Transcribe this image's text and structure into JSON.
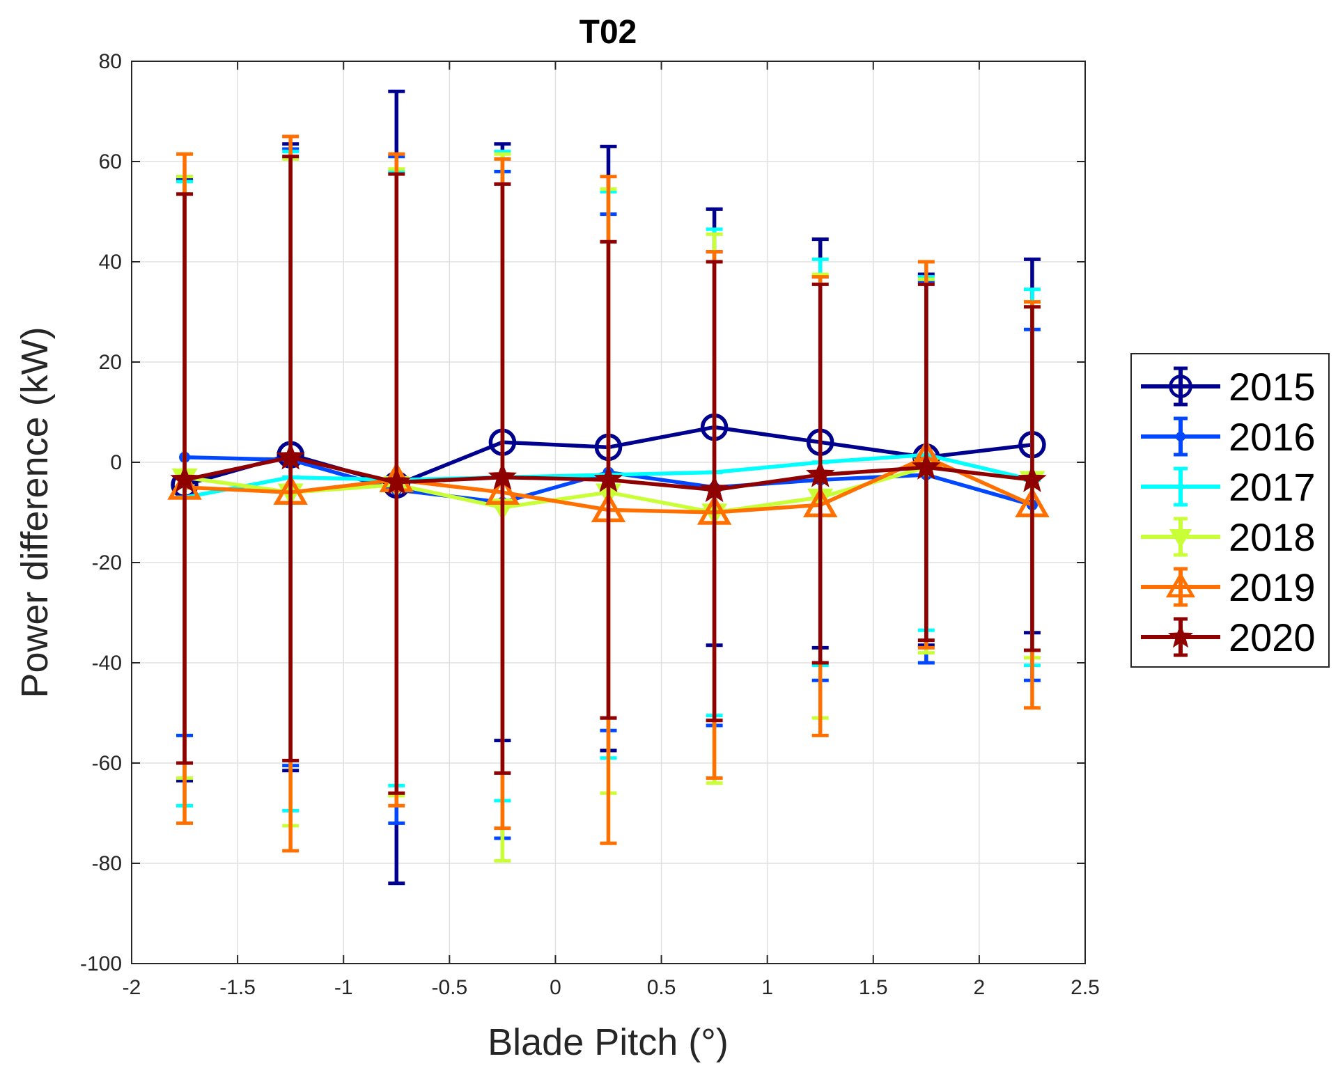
{
  "chart_data": {
    "type": "line",
    "title": "T02",
    "xlabel": "Blade Pitch (°)",
    "ylabel": "Power difference (kW)",
    "xlim": [
      -2,
      2.5
    ],
    "ylim": [
      -100,
      80
    ],
    "grid": true,
    "legend_position": "outside-right",
    "xticks": [
      "-2",
      "-1.5",
      "-1",
      "-0.5",
      "0",
      "0.5",
      "1",
      "1.5",
      "2",
      "2.5"
    ],
    "yticks": [
      "-100",
      "-80",
      "-60",
      "-40",
      "-20",
      "0",
      "20",
      "40",
      "60",
      "80"
    ],
    "x": [
      -1.75,
      -1.25,
      -0.75,
      -0.25,
      0.25,
      0.75,
      1.25,
      1.75,
      2.25
    ],
    "series": [
      {
        "name": "2015",
        "color": "#00008f",
        "marker": "circle",
        "values": [
          -4.5,
          1.5,
          -4.5,
          4.0,
          3.0,
          7.0,
          4.0,
          1.0,
          3.5
        ],
        "lower": [
          -63.5,
          -61.5,
          -84.0,
          -55.5,
          -57.5,
          -36.5,
          -37.0,
          -36.5,
          -34.0
        ],
        "upper": [
          56.5,
          63.5,
          74.0,
          63.5,
          63.0,
          50.5,
          44.5,
          37.5,
          40.5
        ]
      },
      {
        "name": "2016",
        "color": "#0047ff",
        "marker": "dot",
        "values": [
          1.0,
          0.5,
          -5.5,
          -8.0,
          -2.0,
          -5.0,
          -3.5,
          -2.5,
          -8.5
        ],
        "lower": [
          -54.5,
          -60.5,
          -72.0,
          -75.0,
          -53.5,
          -52.5,
          -43.5,
          -40.0,
          -43.5
        ],
        "upper": [
          57.0,
          62.5,
          61.0,
          58.0,
          49.5,
          42.0,
          37.0,
          36.0,
          26.5
        ]
      },
      {
        "name": "2017",
        "color": "#00ffff",
        "marker": "plus",
        "values": [
          -7.0,
          -3.0,
          -3.5,
          -3.0,
          -2.5,
          -2.0,
          0.0,
          1.5,
          -3.5
        ],
        "lower": [
          -68.5,
          -69.5,
          -64.5,
          -67.5,
          -59.0,
          -50.5,
          -40.5,
          -33.5,
          -40.5
        ],
        "upper": [
          56.0,
          62.0,
          58.0,
          62.0,
          54.0,
          46.5,
          40.5,
          37.0,
          34.5
        ]
      },
      {
        "name": "2018",
        "color": "#c8ff37",
        "marker": "triangle-down",
        "values": [
          -3.0,
          -6.0,
          -4.5,
          -9.0,
          -6.0,
          -10.0,
          -7.0,
          -1.0,
          -3.5
        ],
        "lower": [
          -63.0,
          -72.5,
          -66.5,
          -79.5,
          -66.0,
          -64.0,
          -51.0,
          -38.0,
          -39.0
        ],
        "upper": [
          57.0,
          60.5,
          58.5,
          61.5,
          54.5,
          45.5,
          37.5,
          36.5,
          32.0
        ]
      },
      {
        "name": "2019",
        "color": "#ff7000",
        "marker": "triangle-up",
        "values": [
          -5.0,
          -6.0,
          -3.5,
          -6.0,
          -9.5,
          -10.0,
          -8.5,
          1.0,
          -8.5
        ],
        "lower": [
          -72.0,
          -77.5,
          -68.5,
          -73.0,
          -76.0,
          -63.0,
          -54.5,
          -37.0,
          -49.0
        ],
        "upper": [
          61.5,
          65.0,
          61.5,
          60.5,
          57.0,
          42.0,
          37.0,
          40.0,
          32.0
        ]
      },
      {
        "name": "2020",
        "color": "#8f0000",
        "marker": "star",
        "values": [
          -3.5,
          1.0,
          -4.0,
          -3.0,
          -3.5,
          -5.5,
          -2.5,
          -1.0,
          -3.5
        ],
        "lower": [
          -60.0,
          -59.5,
          -66.0,
          -62.0,
          -51.0,
          -51.5,
          -40.0,
          -35.5,
          -37.5
        ],
        "upper": [
          53.5,
          61.0,
          57.5,
          55.5,
          44.0,
          40.0,
          35.5,
          35.5,
          31.0
        ]
      }
    ]
  }
}
